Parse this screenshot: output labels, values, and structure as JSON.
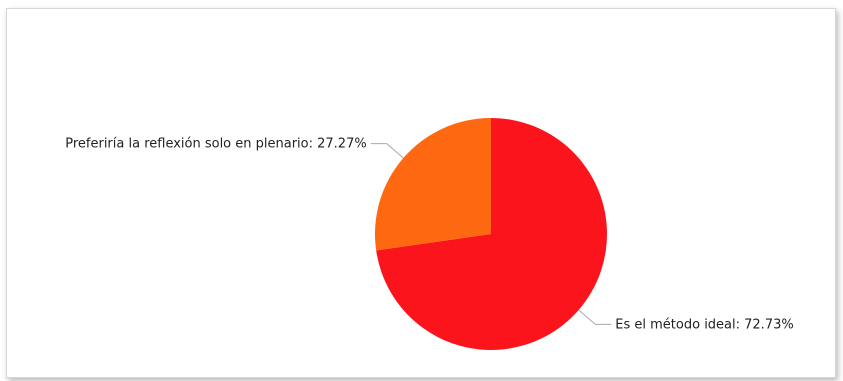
{
  "chart_data": {
    "type": "pie",
    "title": "",
    "legend": "none",
    "slices": [
      {
        "label": "Es el método ideal",
        "value": 72.73,
        "display": "Es el método ideal: 72.73%",
        "color": "#fc141c"
      },
      {
        "label": "Preferiría la reflexión solo en plenario",
        "value": 27.27,
        "display": "Preferiría la reflexión solo en plenario: 27.27%",
        "color": "#fd6810"
      }
    ]
  }
}
